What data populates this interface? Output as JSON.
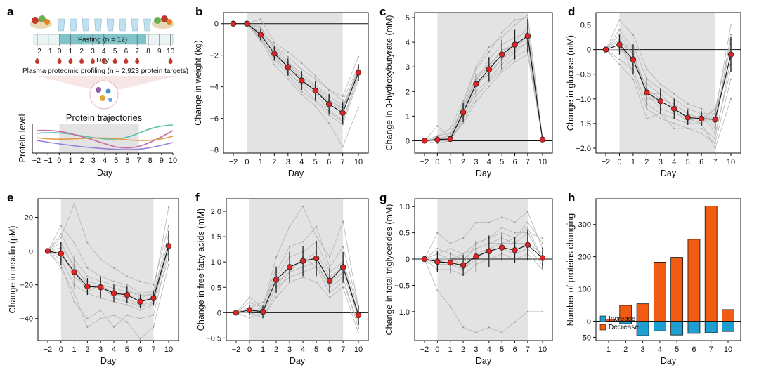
{
  "panel_a": {
    "letter": "a",
    "fasting_label": "Fasting (n = 12)",
    "timeline_days": [
      "−2",
      "−1",
      "0",
      "1",
      "2",
      "3",
      "4",
      "5",
      "6",
      "7",
      "8",
      "9",
      "10"
    ],
    "timeline_axis_label": "Day",
    "profiling_label": "Plasma proteomic profiling (n = 2,923 protein targets)",
    "trajectories_title": "Protein trajectories",
    "y_label": "Protein level",
    "days": [
      "−2",
      "−1",
      "0",
      "1",
      "2",
      "3",
      "4",
      "5",
      "6",
      "7",
      "8",
      "9",
      "10"
    ],
    "x_label": "Day",
    "colors": {
      "fasting_bar": "#7fc4c9",
      "drop": "#c0392b",
      "cup": "#bfe0f0"
    }
  },
  "chart_data": [
    {
      "panel": "b",
      "type": "line",
      "ylabel": "Change in weight (kg)",
      "xlabel": "Day",
      "categories": [
        "−2",
        "0",
        "1",
        "2",
        "3",
        "4",
        "5",
        "6",
        "7",
        "10"
      ],
      "ylim": [
        -8.2,
        0.7
      ],
      "yticks": [
        0,
        -2,
        -4,
        -6,
        -8
      ],
      "ytick_labels": [
        "0",
        "−2",
        "−4",
        "−6",
        "−8"
      ],
      "mean": [
        0,
        0,
        -0.7,
        -1.9,
        -2.75,
        -3.6,
        -4.25,
        -5.1,
        -5.65,
        -3.1
      ],
      "err": [
        0,
        0.1,
        0.35,
        0.45,
        0.55,
        0.6,
        0.6,
        0.65,
        0.7,
        0.55
      ],
      "individuals": [
        [
          0,
          0,
          -0.3,
          -1.4,
          -2.1,
          -2.9,
          -3.5,
          -4.2,
          -4.9,
          -2.7
        ],
        [
          0,
          0,
          -0.9,
          -2.3,
          -3.2,
          -4.3,
          -4.9,
          -5.8,
          -6.4,
          -3.6
        ],
        [
          0,
          0,
          -1.1,
          -2.0,
          -3.1,
          -3.8,
          -4.4,
          -5.5,
          -6.1,
          -3.2
        ],
        [
          0,
          0,
          -0.5,
          -1.5,
          -2.4,
          -3.2,
          -3.9,
          -4.6,
          -5.2,
          -2.9
        ],
        [
          0,
          0,
          -0.6,
          -1.8,
          -2.5,
          -3.4,
          -4.0,
          -4.8,
          -5.4,
          -3.0
        ],
        [
          0,
          0,
          -1.0,
          -2.6,
          -3.5,
          -4.5,
          -5.2,
          -6.3,
          -7.8,
          -5.3
        ],
        [
          0,
          0,
          0.3,
          -1.2,
          -1.8,
          -2.5,
          -3.3,
          -4.2,
          -4.6,
          -2.1
        ],
        [
          0,
          0,
          -0.8,
          -2.2,
          -3.0,
          -4.0,
          -4.8,
          -5.6,
          -6.2,
          -3.4
        ],
        [
          0,
          0,
          -0.2,
          -1.6,
          -2.9,
          -3.6,
          -4.1,
          -5.0,
          -5.5,
          -3.0
        ],
        [
          0,
          0,
          -0.7,
          -1.9,
          -2.6,
          -3.5,
          -4.3,
          -4.9,
          -5.3,
          -2.8
        ]
      ],
      "shade_days": [
        "0",
        "7"
      ]
    },
    {
      "panel": "c",
      "type": "line",
      "ylabel": "Change in 3-hydroxybutyrate (mM)",
      "xlabel": "Day",
      "categories": [
        "−2",
        "0",
        "1",
        "2",
        "3",
        "4",
        "5",
        "6",
        "7",
        "10"
      ],
      "ylim": [
        -0.5,
        5.2
      ],
      "yticks": [
        0,
        1,
        2,
        3,
        4,
        5
      ],
      "ytick_labels": [
        "0",
        "1",
        "2",
        "3",
        "4",
        "5"
      ],
      "mean": [
        0,
        0.05,
        0.07,
        1.15,
        2.3,
        2.9,
        3.5,
        3.9,
        4.25,
        0.05
      ],
      "err": [
        0,
        0.12,
        0.1,
        0.4,
        0.45,
        0.5,
        0.6,
        0.6,
        0.7,
        0.08
      ],
      "individuals": [
        [
          0,
          0.2,
          0.5,
          1.6,
          3.0,
          3.8,
          4.2,
          4.7,
          5.1,
          0.05
        ],
        [
          0,
          0.1,
          0.1,
          1.0,
          2.0,
          2.5,
          3.1,
          3.6,
          4.0,
          0.05
        ],
        [
          0,
          0.0,
          0.0,
          0.8,
          1.8,
          2.4,
          2.9,
          3.4,
          3.7,
          0.05
        ],
        [
          0,
          0.2,
          0.3,
          1.4,
          2.6,
          3.1,
          3.6,
          4.0,
          4.6,
          0.05
        ],
        [
          0,
          0.05,
          0.1,
          1.2,
          2.4,
          3.3,
          3.9,
          4.2,
          4.4,
          0.05
        ],
        [
          0,
          0.0,
          0.0,
          0.9,
          2.2,
          2.8,
          3.3,
          3.7,
          4.0,
          0.05
        ],
        [
          0,
          0.6,
          0.1,
          1.5,
          2.9,
          3.6,
          4.4,
          4.9,
          5.0,
          0.05
        ],
        [
          0,
          0.0,
          0.1,
          0.7,
          1.6,
          2.2,
          2.8,
          3.2,
          3.5,
          0.05
        ],
        [
          0,
          -0.1,
          0.0,
          1.1,
          2.3,
          2.7,
          3.3,
          3.9,
          4.1,
          0.05
        ],
        [
          0,
          0.1,
          0.2,
          1.3,
          2.5,
          3.0,
          3.7,
          3.8,
          4.3,
          0.05
        ]
      ],
      "shade_days": [
        "0",
        "7"
      ]
    },
    {
      "panel": "d",
      "type": "line",
      "ylabel": "Change in glucose (mM)",
      "xlabel": "Day",
      "categories": [
        "−2",
        "0",
        "1",
        "2",
        "3",
        "4",
        "5",
        "6",
        "7",
        "10"
      ],
      "ylim": [
        -2.1,
        0.75
      ],
      "yticks": [
        0.5,
        0,
        -0.5,
        -1.0,
        -1.5,
        -2.0
      ],
      "ytick_labels": [
        "0.5",
        "0",
        "−0.5",
        "−1.0",
        "−1.5",
        "−2.0"
      ],
      "mean": [
        0,
        0.1,
        -0.2,
        -0.87,
        -1.05,
        -1.2,
        -1.38,
        -1.4,
        -1.42,
        -0.1
      ],
      "err": [
        0,
        0.2,
        0.3,
        0.3,
        0.25,
        0.2,
        0.15,
        0.15,
        0.2,
        0.35
      ],
      "individuals": [
        [
          0,
          0.6,
          0.3,
          -0.4,
          -0.7,
          -0.9,
          -1.1,
          -1.2,
          -1.6,
          0.3
        ],
        [
          0,
          0.2,
          -0.5,
          -1.2,
          -1.4,
          -1.5,
          -1.6,
          -1.6,
          -1.8,
          -0.2
        ],
        [
          0,
          -0.3,
          -0.6,
          -1.4,
          -1.3,
          -1.6,
          -1.6,
          -1.7,
          -1.9,
          -0.6
        ],
        [
          0,
          0.0,
          0.1,
          -0.6,
          -0.8,
          -1.0,
          -1.2,
          -1.3,
          -1.3,
          0.5
        ],
        [
          0,
          0.3,
          -0.1,
          -0.9,
          -1.2,
          -1.3,
          -1.4,
          -1.5,
          -1.3,
          -0.1
        ],
        [
          0,
          0.1,
          -0.3,
          -0.7,
          -0.9,
          -1.2,
          -1.5,
          -1.3,
          -1.7,
          -0.4
        ],
        [
          0,
          0.4,
          0.0,
          -1.0,
          -1.0,
          -1.1,
          -1.3,
          -1.4,
          -1.2,
          0.2
        ],
        [
          0,
          -0.2,
          -0.4,
          -1.1,
          -1.3,
          -1.4,
          -1.5,
          -1.5,
          -2.0,
          -1.0
        ],
        [
          0,
          0.2,
          -0.1,
          -0.8,
          -1.0,
          -1.1,
          -1.3,
          -1.4,
          -1.4,
          0.1
        ],
        [
          0,
          0.0,
          -0.2,
          -0.9,
          -0.9,
          -1.2,
          -1.4,
          -1.5,
          -1.2,
          -0.3
        ]
      ],
      "shade_days": [
        "0",
        "7"
      ]
    },
    {
      "panel": "e",
      "type": "line",
      "ylabel": "Change in insulin (pM)",
      "xlabel": "Day",
      "categories": [
        "−2",
        "0",
        "1",
        "2",
        "3",
        "4",
        "5",
        "6",
        "7",
        "10"
      ],
      "ylim": [
        -53,
        31
      ],
      "yticks": [
        20,
        0,
        -20,
        -40
      ],
      "ytick_labels": [
        "20",
        "0",
        "−20",
        "−40"
      ],
      "mean": [
        0,
        -1.5,
        -12.5,
        -21,
        -21.5,
        -25,
        -26,
        -30,
        -28,
        3
      ],
      "err": [
        0,
        7,
        10,
        5,
        6,
        5,
        5,
        4,
        4,
        9
      ],
      "individuals": [
        [
          0,
          15,
          5,
          -10,
          -15,
          -18,
          -20,
          -25,
          -24,
          26
        ],
        [
          0,
          10,
          -5,
          -15,
          -18,
          -20,
          -22,
          -28,
          -25,
          10
        ],
        [
          0,
          -5,
          -20,
          -25,
          -28,
          -30,
          -32,
          -35,
          -32,
          -5
        ],
        [
          0,
          5,
          -10,
          -18,
          -20,
          -22,
          -24,
          -26,
          -26,
          6
        ],
        [
          0,
          -8,
          -30,
          -40,
          -35,
          -45,
          -38,
          -40,
          -38,
          0
        ],
        [
          0,
          0,
          -15,
          -22,
          -20,
          -25,
          -28,
          -32,
          -30,
          3
        ],
        [
          0,
          -10,
          -25,
          -45,
          -40,
          -38,
          -42,
          -52,
          -45,
          -8
        ],
        [
          0,
          8,
          28,
          5,
          -5,
          -10,
          -15,
          -18,
          -20,
          15
        ],
        [
          0,
          2,
          -8,
          -20,
          -22,
          -26,
          -25,
          -30,
          -27,
          4
        ],
        [
          0,
          -3,
          -12,
          -24,
          -20,
          -28,
          -30,
          -33,
          -31,
          1
        ]
      ],
      "shade_days": [
        "0",
        "7"
      ]
    },
    {
      "panel": "f",
      "type": "line",
      "ylabel": "Change in free fatty acids (mM)",
      "xlabel": "Day",
      "categories": [
        "−2",
        "0",
        "1",
        "2",
        "3",
        "4",
        "5",
        "6",
        "7",
        "10"
      ],
      "ylim": [
        -0.55,
        2.25
      ],
      "yticks": [
        2.0,
        1.5,
        1.0,
        0.5,
        0,
        -0.5
      ],
      "ytick_labels": [
        "2.0",
        "1.5",
        "1.0",
        "0.5",
        "0",
        "−0.5"
      ],
      "mean": [
        0,
        0.05,
        0.02,
        0.65,
        0.9,
        1.02,
        1.07,
        0.63,
        0.9,
        -0.05
      ],
      "err": [
        0,
        0.1,
        0.12,
        0.25,
        0.3,
        0.3,
        0.35,
        0.25,
        0.3,
        0.2
      ],
      "individuals": [
        [
          0,
          0.2,
          0.1,
          1.1,
          1.7,
          2.1,
          1.5,
          1.1,
          1.8,
          0.1
        ],
        [
          0,
          0.0,
          -0.1,
          0.4,
          0.8,
          0.9,
          1.0,
          0.5,
          0.7,
          -0.3
        ],
        [
          0,
          0.1,
          0.2,
          0.7,
          1.1,
          1.2,
          1.4,
          0.8,
          1.0,
          0.1
        ],
        [
          0,
          -0.1,
          0.0,
          0.5,
          0.7,
          0.8,
          0.9,
          0.4,
          0.6,
          -0.2
        ],
        [
          0,
          0.3,
          0.1,
          0.9,
          0.9,
          1.0,
          1.2,
          0.7,
          0.9,
          0.0
        ],
        [
          0,
          0.0,
          -0.1,
          0.3,
          0.6,
          0.7,
          0.6,
          0.3,
          0.5,
          -0.4
        ],
        [
          0,
          0.1,
          0.0,
          0.8,
          1.3,
          1.4,
          1.7,
          0.9,
          1.3,
          0.1
        ],
        [
          0,
          0.0,
          0.1,
          0.6,
          0.8,
          1.1,
          0.9,
          0.6,
          0.8,
          -0.1
        ],
        [
          0,
          0.05,
          0.0,
          0.5,
          0.9,
          1.0,
          1.1,
          0.6,
          0.95,
          0.0
        ]
      ],
      "shade_days": [
        "0",
        "7"
      ]
    },
    {
      "panel": "g",
      "type": "line",
      "ylabel": "Change in total triglycerides (mM)",
      "xlabel": "Day",
      "categories": [
        "−2",
        "0",
        "1",
        "2",
        "3",
        "4",
        "5",
        "6",
        "7",
        "10"
      ],
      "ylim": [
        -1.55,
        1.15
      ],
      "yticks": [
        1.0,
        0.5,
        0,
        -0.5,
        -1.0
      ],
      "ytick_labels": [
        "1.0",
        "0.5",
        "0",
        "−0.5",
        "−1.0"
      ],
      "mean": [
        0,
        -0.05,
        -0.07,
        -0.12,
        0.05,
        0.15,
        0.22,
        0.17,
        0.27,
        0.02
      ],
      "err": [
        0,
        0.2,
        0.2,
        0.2,
        0.3,
        0.3,
        0.25,
        0.25,
        0.3,
        0.2
      ],
      "individuals": [
        [
          0,
          0.5,
          0.3,
          0.4,
          0.7,
          0.7,
          0.8,
          0.7,
          0.9,
          0.2
        ],
        [
          0,
          -0.6,
          -0.9,
          -1.3,
          -1.4,
          -1.3,
          -1.4,
          -1.2,
          -1.0,
          -1.0
        ],
        [
          0,
          0.1,
          0.0,
          -0.1,
          0.3,
          0.4,
          0.5,
          0.4,
          0.7,
          0.3
        ],
        [
          0,
          0.0,
          -0.1,
          -0.2,
          0.0,
          0.2,
          0.3,
          0.3,
          0.5,
          0.0
        ],
        [
          0,
          -0.2,
          -0.2,
          -0.3,
          -0.1,
          0.0,
          0.1,
          0.0,
          0.1,
          -0.2
        ],
        [
          0,
          0.2,
          0.1,
          0.0,
          0.2,
          0.3,
          0.4,
          0.3,
          0.3,
          0.1
        ],
        [
          0,
          0.1,
          0.2,
          0.1,
          0.3,
          0.4,
          0.6,
          0.5,
          0.5,
          0.4
        ],
        [
          0,
          -0.1,
          -0.1,
          -0.2,
          0.1,
          0.2,
          0.2,
          0.1,
          0.2,
          -0.1
        ],
        [
          0,
          0.0,
          0.0,
          0.1,
          0.2,
          0.3,
          0.3,
          0.4,
          0.6,
          0.0
        ]
      ],
      "shade_days": [
        "0",
        "7"
      ]
    },
    {
      "panel": "h",
      "type": "bar",
      "ylabel": "Number of proteins changing",
      "xlabel": "Day",
      "categories": [
        "1",
        "2",
        "3",
        "4",
        "5",
        "6",
        "7",
        "10"
      ],
      "ylim": [
        -60,
        380
      ],
      "yticks": [
        -50,
        0,
        100,
        200,
        300
      ],
      "ytick_labels": [
        "50",
        "0",
        "100",
        "200",
        "300"
      ],
      "series": [
        {
          "name": "Increase",
          "color": "#1f9ed1",
          "values": [
            0,
            8,
            45,
            30,
            43,
            38,
            36,
            32
          ]
        },
        {
          "name": "Decrease",
          "color": "#f25c12",
          "values": [
            6,
            49,
            54,
            183,
            198,
            254,
            357,
            36
          ]
        }
      ],
      "legend": [
        "Increase",
        "Decrease"
      ],
      "legend_position": "bottom-left"
    }
  ]
}
